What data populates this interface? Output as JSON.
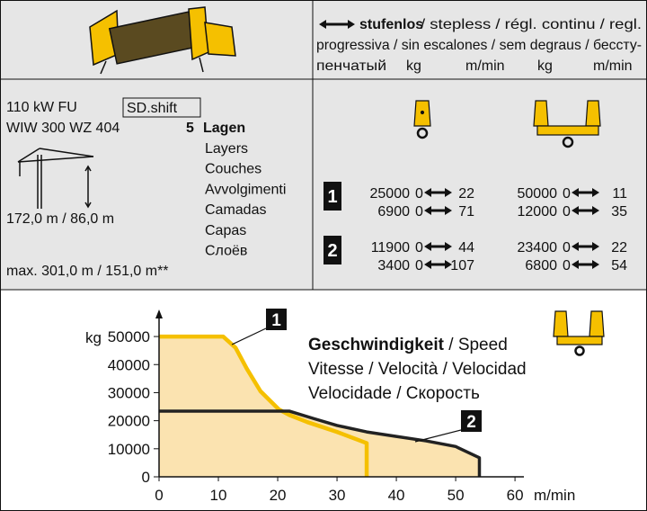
{
  "header": {
    "speed_title_bold": "stufenlos",
    "speed_title_lines": [
      " / stepless / régl. continu / regl.",
      "progressiva / sin escalones / sem degraus / бессту-",
      "пенчатый"
    ],
    "column_heads": [
      "kg",
      "m/min",
      "kg",
      "m/min"
    ]
  },
  "drive": {
    "power": "110 kW FU",
    "system": "SD.shift",
    "winch": "WIW 300 WZ 404",
    "layers_count": "5",
    "layers_label": "Lagen",
    "layers_translations": [
      "Layers",
      "Couches",
      "Avvolgimenti",
      "Camadas",
      "Capas",
      "Слоёв"
    ],
    "rope_length": "172,0 m / 86,0 m",
    "max_rope_length": "max. 301,0 m / 151,0 m**"
  },
  "gears": [
    {
      "label": "1",
      "rows": [
        [
          25000,
          0,
          22,
          50000,
          0,
          11
        ],
        [
          6900,
          0,
          71,
          12000,
          0,
          35
        ]
      ]
    },
    {
      "label": "2",
      "rows": [
        [
          11900,
          0,
          44,
          23400,
          0,
          22
        ],
        [
          3400,
          0,
          107,
          6800,
          0,
          54
        ]
      ]
    }
  ],
  "chart_data": {
    "type": "line",
    "title": "Geschwindigkeit",
    "subtitle": [
      " / Speed",
      "Vitesse / Velocità / Velocidad",
      "Velocidade / Скорость"
    ],
    "y_label": "kg",
    "x_label": "m/min",
    "fill_color": "#fbe3b0",
    "xlim": [
      0,
      61.5
    ],
    "ylim": [
      0,
      59000
    ],
    "xticks": [
      0,
      10,
      20,
      30,
      40,
      50,
      60
    ],
    "yticks": [
      0,
      10000,
      20000,
      30000,
      40000,
      50000
    ],
    "series": [
      {
        "name": "1",
        "color": "#f5c000",
        "x": [
          0,
          10.8,
          12.9,
          14.8,
          17.1,
          20.2,
          22,
          25,
          30,
          35,
          35
        ],
        "values": [
          50000,
          50000,
          46000,
          38500,
          30500,
          24000,
          22000,
          19500,
          16000,
          12000,
          0
        ]
      },
      {
        "name": "2",
        "color": "#222222",
        "x": [
          0,
          22,
          26,
          30,
          35,
          40,
          45,
          50,
          54,
          54
        ],
        "values": [
          23400,
          23400,
          20800,
          18300,
          16000,
          14400,
          12800,
          10800,
          6800,
          0
        ]
      }
    ]
  }
}
